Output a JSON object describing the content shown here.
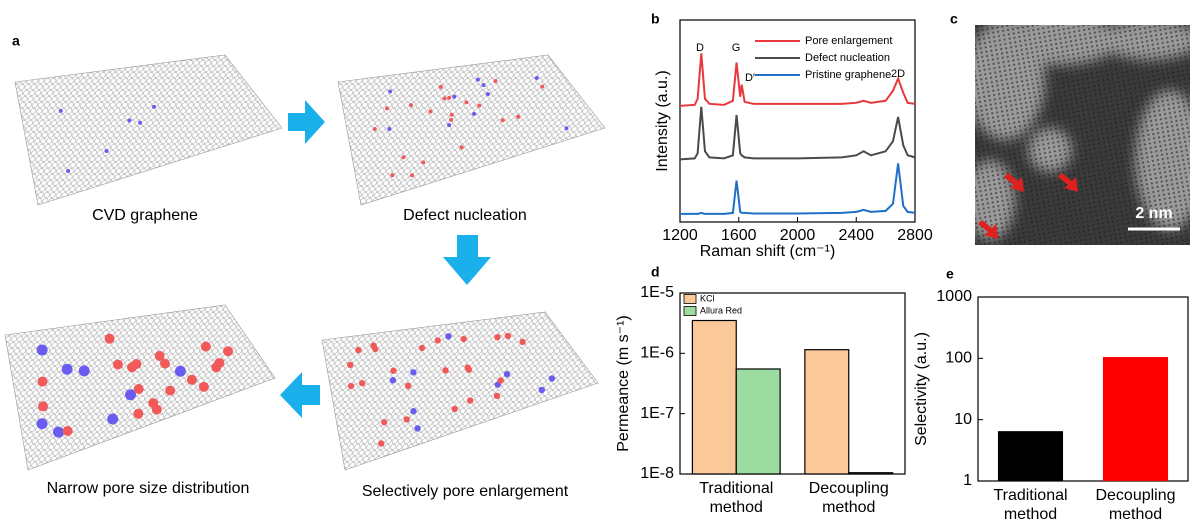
{
  "panel_labels": [
    "a",
    "b",
    "c",
    "d",
    "e"
  ],
  "schematic": {
    "captions": [
      "CVD graphene",
      "Defect nucleation",
      "Selectively pore enlargement",
      "Narrow pore size distribution"
    ]
  },
  "micrograph": {
    "scale_bar": "2 nm"
  },
  "chart_data": [
    {
      "type": "line",
      "x_label": "Raman shift (cm⁻¹)",
      "y_label": "Intensity (a.u.)",
      "x": [
        1200,
        1300,
        1320,
        1345,
        1370,
        1400,
        1500,
        1560,
        1585,
        1610,
        1620,
        1640,
        1700,
        2000,
        2300,
        2400,
        2450,
        2500,
        2600,
        2650,
        2685,
        2720,
        2750,
        2800
      ],
      "series": [
        {
          "name": "Pore enlargement",
          "color": "#e8383d",
          "values": [
            5.75,
            5.8,
            6.1,
            8.35,
            6.1,
            5.85,
            5.8,
            6.0,
            7.9,
            6.2,
            6.8,
            5.95,
            5.85,
            5.85,
            5.85,
            5.9,
            6.0,
            5.9,
            6.0,
            6.5,
            7.1,
            6.4,
            5.9,
            5.85
          ]
        },
        {
          "name": "Defect nucleation",
          "color": "#4a4a4a",
          "values": [
            3.1,
            3.15,
            3.4,
            5.7,
            3.5,
            3.2,
            3.15,
            3.3,
            5.3,
            3.4,
            3.3,
            3.2,
            3.15,
            3.15,
            3.2,
            3.3,
            3.5,
            3.3,
            3.5,
            4.0,
            5.2,
            3.8,
            3.3,
            3.2
          ]
        },
        {
          "name": "Pristine graphene",
          "color": "#1f6fc9",
          "values": [
            0.4,
            0.4,
            0.4,
            0.45,
            0.4,
            0.4,
            0.4,
            0.45,
            2.05,
            0.5,
            0.45,
            0.45,
            0.42,
            0.42,
            0.45,
            0.5,
            0.6,
            0.5,
            0.55,
            0.9,
            2.9,
            0.8,
            0.5,
            0.45
          ]
        }
      ],
      "xlim": [
        1200,
        2800
      ],
      "xticks": [
        1200,
        1600,
        2000,
        2400,
        2800
      ],
      "ylim": [
        0,
        10
      ],
      "annotations": [
        "D",
        "G",
        "D′",
        "2D"
      ],
      "legend": "upper right"
    },
    {
      "type": "bar",
      "y_label": "Permeance (m s⁻¹)",
      "categories": [
        "Traditional method",
        "Decoupling method"
      ],
      "series": [
        {
          "name": "KCl",
          "color": "#fbc89a",
          "values": [
            3.5e-06,
            1.15e-06
          ]
        },
        {
          "name": "Allura Red",
          "color": "#9ddca0",
          "values": [
            5.5e-07,
            1.05e-08
          ]
        }
      ],
      "log": true,
      "ylim": [
        1e-08,
        1e-05
      ],
      "yticks": [
        {
          "value": 1e-08,
          "label": "1E-8"
        },
        {
          "value": 1e-07,
          "label": "1E-7"
        },
        {
          "value": 1e-06,
          "label": "1E-6"
        },
        {
          "value": 1e-05,
          "label": "1E-5"
        }
      ],
      "legend": "upper left"
    },
    {
      "type": "bar",
      "y_label": "Selectivity (a.u.)",
      "categories": [
        "Traditional method",
        "Decoupling method"
      ],
      "values": [
        6.5,
        105
      ],
      "colors": [
        "#000000",
        "#ff0000"
      ],
      "log": true,
      "ylim": [
        1,
        1000
      ],
      "yticks": [
        1,
        10,
        100,
        1000
      ]
    }
  ]
}
